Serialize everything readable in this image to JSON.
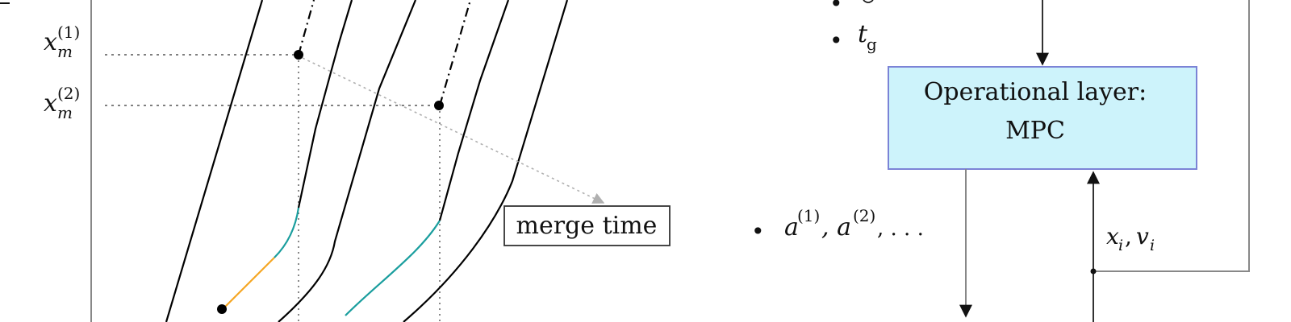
{
  "left_panel": {
    "labels": {
      "xm1_base": "x",
      "xm1_sub": "m",
      "xm1_sup": "(1)",
      "xm2_base": "x",
      "xm2_sub": "m",
      "xm2_sup": "(2)"
    },
    "annotation": "merge time",
    "colors": {
      "trajectory": "#000000",
      "segment_orange": "#f5a623",
      "segment_teal": "#1a9e9e",
      "arrow": "#b0b0b0",
      "dotted": "#555555"
    }
  },
  "right_panel": {
    "bullet": "•",
    "bullet_labels": {
      "tg_base": "t",
      "tg_sub": "g",
      "a_text1": "a",
      "a_sup1": "(1)",
      "a_text2": ", a",
      "a_sup2": "(2)",
      "a_text3": ", . . ."
    },
    "operational_box": {
      "line1": "Operational layer:",
      "line2": "MPC",
      "fill": "#cdf3fb",
      "border": "#7b83d6"
    },
    "feedback_label": {
      "x_base": "x",
      "x_sub": "i",
      "sep": ",",
      "v_base": "v",
      "v_sub": "i"
    }
  }
}
